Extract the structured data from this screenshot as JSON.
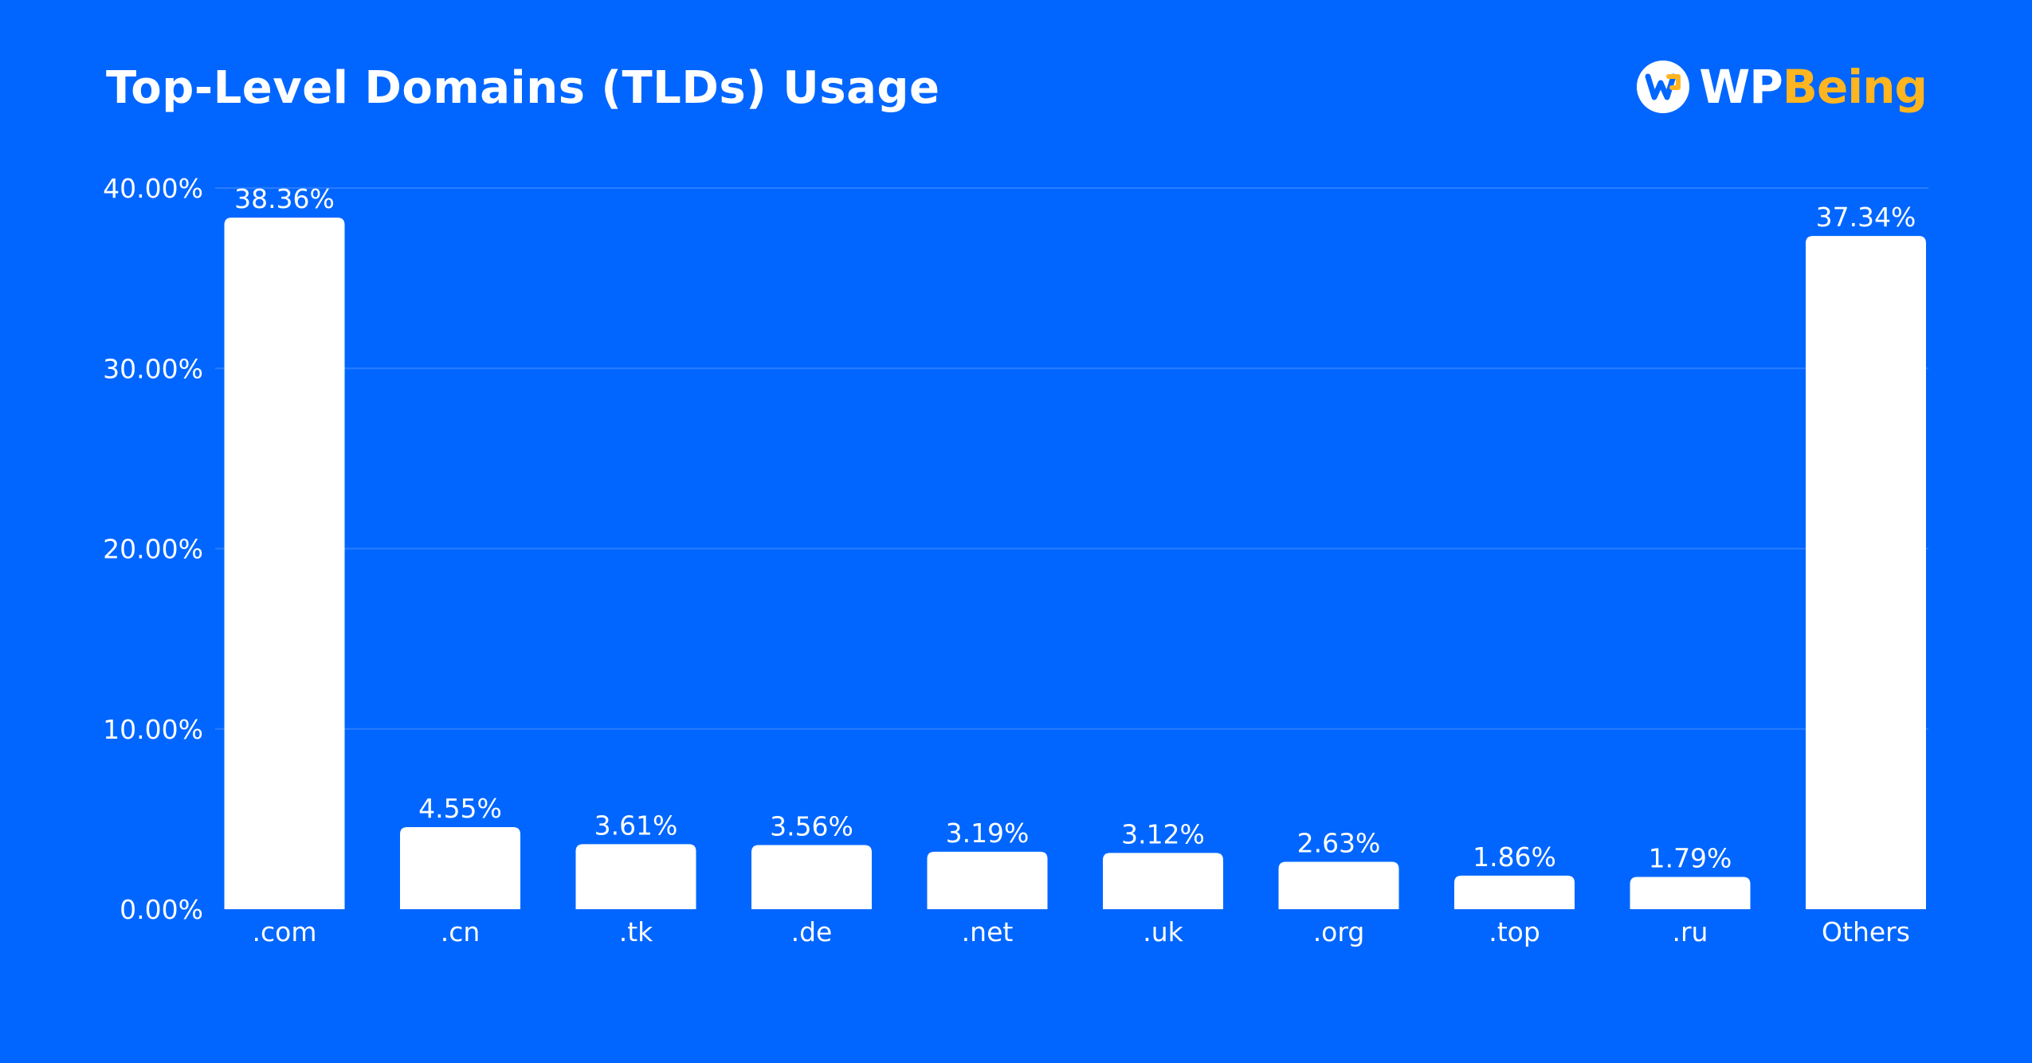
{
  "header": {
    "title": "Top-Level Domains (TLDs) Usage"
  },
  "brand": {
    "logo_icon": "wp-being-logo-icon",
    "name_part1": "WP",
    "name_part2": "Being",
    "accent_color": "#ffb51f"
  },
  "colors": {
    "background": "#0066ff",
    "bar": "#ffffff",
    "gridline": "#2a7dff",
    "text": "#ffffff"
  },
  "chart_data": {
    "type": "bar",
    "title": "Top-Level Domains (TLDs) Usage",
    "xlabel": "",
    "ylabel": "",
    "categories": [
      ".com",
      ".cn",
      ".tk",
      ".de",
      ".net",
      ".uk",
      ".org",
      ".top",
      ".ru",
      "Others"
    ],
    "values": [
      38.36,
      4.55,
      3.61,
      3.56,
      3.19,
      3.12,
      2.63,
      1.86,
      1.79,
      37.34
    ],
    "value_labels": [
      "38.36%",
      "4.55%",
      "3.61%",
      "3.56%",
      "3.19%",
      "3.12%",
      "2.63%",
      "1.86%",
      "1.79%",
      "37.34%"
    ],
    "ylim": [
      0,
      40
    ],
    "yticks": [
      0,
      10,
      20,
      30,
      40
    ],
    "ytick_labels": [
      "0.00%",
      "10.00%",
      "20.00%",
      "30.00%",
      "40.00%"
    ],
    "grid": true,
    "legend": "none"
  }
}
